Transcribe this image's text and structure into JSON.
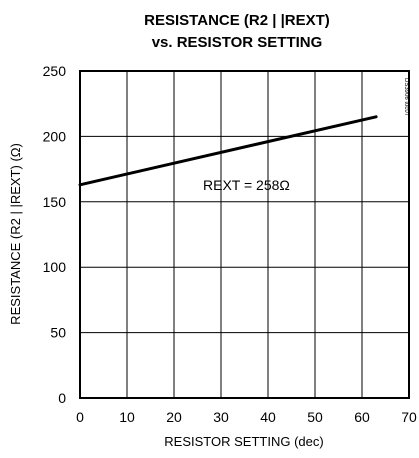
{
  "chart_data": {
    "type": "line",
    "title_line1": "RESISTANCE (R2 | |REXT)",
    "title_line2": "vs. RESISTOR SETTING",
    "xlabel": "RESISTOR SETTING (dec)",
    "ylabel": "RESISTANCE (R2 | |REXT) (Ω)",
    "xlim": [
      0,
      70
    ],
    "ylim": [
      0,
      250
    ],
    "x_ticks": [
      "0",
      "10",
      "20",
      "30",
      "40",
      "50",
      "60",
      "70"
    ],
    "y_ticks": [
      "0",
      "50",
      "100",
      "150",
      "200",
      "250"
    ],
    "grid": true,
    "series": [
      {
        "x": [
          0,
          63
        ],
        "y": [
          163,
          215
        ]
      }
    ],
    "annotation": "REXT = 258Ω",
    "watermark": "DS3906 toc07"
  }
}
